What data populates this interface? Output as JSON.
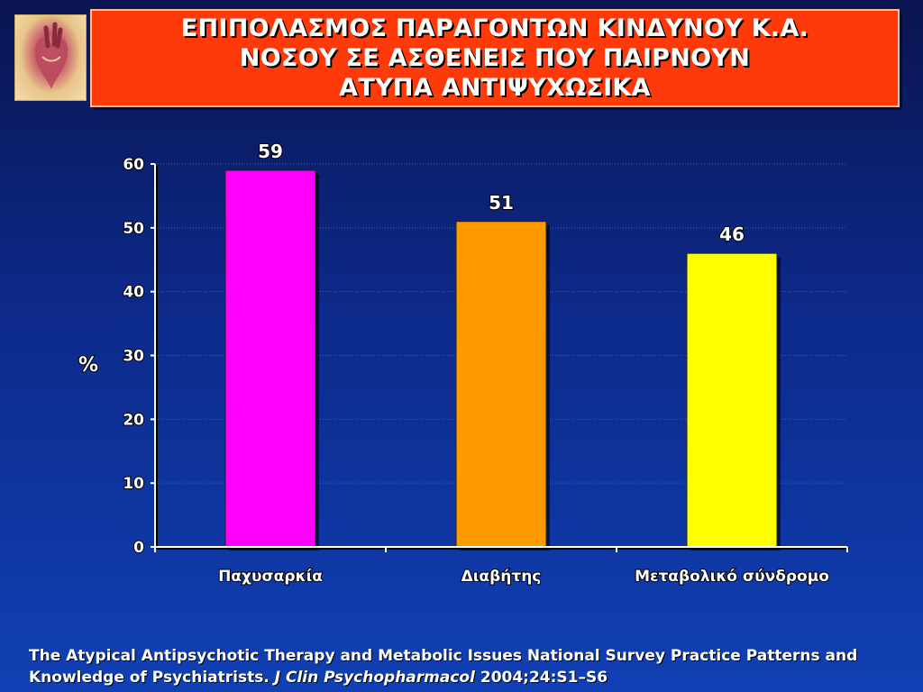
{
  "title": {
    "lines": [
      "ΕΠΙΠΟΛΑΣΜΟΣ ΠΑΡΑΓΟΝΤΩΝ ΚΙΝΔΥΝΟΥ Κ.Α.",
      "ΝΟΣΟΥ ΣΕ ΑΣΘΕΝΕΙΣ ΠΟΥ ΠΑΙΡΝΟΥΝ",
      "ΑΤΥΠΑ ΑΝΤΙΨΥΧΩΣΙΚΑ"
    ]
  },
  "logo_icon": "anatomical-heart-icon",
  "chart_data": {
    "type": "bar",
    "categories": [
      "Παχυσαρκία",
      "Διαβήτης",
      "Μεταβολικό σύνδρομο"
    ],
    "values": [
      59,
      51,
      46
    ],
    "colors": [
      "#ff00ff",
      "#ff9900",
      "#ffff00"
    ],
    "ylabel": "%",
    "ylim": [
      0,
      60
    ],
    "yticks": [
      0,
      10,
      20,
      30,
      40,
      50,
      60
    ],
    "grid": true
  },
  "footer": {
    "text1": "The Atypical Antipsychotic Therapy and Metabolic Issues National Survey Practice Patterns and Knowledge of Psychiatrists.",
    "journal": "J Clin Psychopharmacol",
    "citation": "2004;24:S1–S6"
  }
}
